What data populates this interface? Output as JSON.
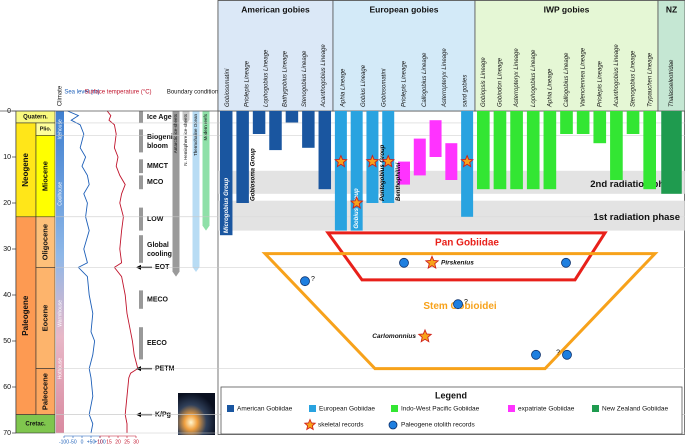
{
  "time_axis": {
    "lim": [
      0,
      70
    ],
    "ticks": [
      0,
      10,
      20,
      30,
      40,
      50,
      60,
      70
    ]
  },
  "periods": [
    {
      "label": "Quatern.",
      "start": 0,
      "end": 2.6,
      "color": "#f9f97f",
      "span": "both"
    },
    {
      "label": "Neogene",
      "start": 2.6,
      "end": 23,
      "color": "#ffe619"
    },
    {
      "label": "Paleogene",
      "start": 23,
      "end": 66,
      "color": "#fd9a52"
    },
    {
      "label": "Cretac.",
      "start": 66,
      "end": 70,
      "color": "#7fc64e",
      "span": "both"
    }
  ],
  "epochs": [
    {
      "label": "Plio.",
      "start": 2.6,
      "end": 5.3,
      "color": "#ffff99"
    },
    {
      "label": "Miocene",
      "start": 5.3,
      "end": 23,
      "color": "#ffff00"
    },
    {
      "label": "Oligocene",
      "start": 23,
      "end": 34,
      "color": "#fdc07a"
    },
    {
      "label": "Eocene",
      "start": 34,
      "end": 56,
      "color": "#fdb46c"
    },
    {
      "label": "Paleocene",
      "start": 56,
      "end": 66,
      "color": "#fda75f"
    }
  ],
  "column_headers": {
    "climate": "Climate",
    "sea_level": "Sea level (m)",
    "temperature": "Surface temperature (°C)",
    "boundary": "Boundary conditions"
  },
  "climate_states": [
    {
      "label": "Icehouse",
      "age": 4
    },
    {
      "label": "Coolhouse",
      "age": 18
    },
    {
      "label": "Warmhouse",
      "age": 44
    },
    {
      "label": "Hothouse",
      "age": 56
    }
  ],
  "sea_level": {
    "ages": [
      0,
      1,
      2,
      3,
      5,
      8,
      10,
      12,
      14,
      16,
      18,
      20,
      23,
      26,
      30,
      33,
      34,
      36,
      40,
      44,
      48,
      50,
      53,
      56,
      58,
      62,
      66,
      68,
      70
    ],
    "values": [
      -80,
      -20,
      -60,
      -10,
      10,
      -10,
      20,
      0,
      30,
      40,
      10,
      30,
      20,
      40,
      10,
      30,
      -20,
      30,
      40,
      60,
      50,
      70,
      60,
      40,
      50,
      60,
      40,
      60,
      50
    ],
    "xlim": [
      -100,
      100
    ],
    "ticks": [
      -100,
      -50,
      0,
      {
        "value": 50,
        "label": "+50"
      },
      {
        "value": 100,
        "label": "+100"
      }
    ]
  },
  "temperature": {
    "ages": [
      0,
      1,
      2,
      3,
      5,
      8,
      10,
      12,
      14,
      16,
      18,
      20,
      23,
      26,
      30,
      33,
      34,
      36,
      40,
      44,
      48,
      50,
      53,
      56,
      57,
      58,
      62,
      66,
      68,
      70
    ],
    "values": [
      14,
      16,
      15,
      18,
      19,
      18,
      20,
      19,
      21,
      24,
      22,
      21,
      23,
      22,
      21,
      22,
      18,
      22,
      24,
      25,
      27,
      28,
      29,
      31,
      27,
      26,
      25,
      24,
      25,
      25
    ],
    "xlim": [
      10,
      30
    ],
    "ticks": [
      10,
      15,
      20,
      25,
      30
    ]
  },
  "boundary_bars": [
    {
      "label": "Antarctic ice-sheets",
      "start": 0,
      "end": 36,
      "color": "#9a9a9a"
    },
    {
      "label": "N. Hemisphere ice-sheets",
      "start": 0,
      "end": 3,
      "color": "#c8c8c8"
    },
    {
      "label": "Thermohaline Ocean",
      "start": 0,
      "end": 35,
      "color": "#b8dcf4"
    },
    {
      "label": "Modern reefs",
      "start": 0,
      "end": 26,
      "color": "#8fe0a8"
    }
  ],
  "events": [
    {
      "label": "Ice Age",
      "start": 0,
      "end": 2.6
    },
    {
      "label": "Biogenic bloom",
      "start": 4,
      "end": 9
    },
    {
      "label": "MMCT",
      "start": 10.5,
      "end": 13.5
    },
    {
      "label": "MCO",
      "start": 14,
      "end": 17
    },
    {
      "label": "LOW",
      "start": 21,
      "end": 26
    },
    {
      "label": "Global cooling",
      "start": 27,
      "end": 33
    },
    {
      "label": "EOT",
      "start": 34,
      "arrow": true
    },
    {
      "label": "MECO",
      "start": 39,
      "end": 43
    },
    {
      "label": "EECO",
      "start": 47,
      "end": 54
    },
    {
      "label": "PETM",
      "start": 56,
      "arrow": true
    },
    {
      "label": "K/Pg",
      "start": 66,
      "arrow": true
    }
  ],
  "groups": [
    {
      "title": "American gobies",
      "color": "#dbe8f7",
      "lineages": [
        "Gobiosomatini",
        "Priolepis Lineage",
        "Lophogobius Lineage",
        "Bathygobius Lineage",
        "Stenogobius Lineage",
        "Acanthogobius Lineage"
      ],
      "bars": [
        {
          "start": 0,
          "end": 27,
          "color": "#1a56a0"
        },
        {
          "start": 0,
          "end": 20,
          "color": "#1a56a0"
        },
        {
          "start": 0,
          "end": 5,
          "color": "#1a56a0"
        },
        {
          "start": 0,
          "end": 8.5,
          "color": "#1a56a0"
        },
        {
          "start": 0,
          "end": 2.5,
          "color": "#1a56a0"
        },
        {
          "start": 0,
          "end": 8,
          "color": "#1a56a0"
        },
        {
          "start": 0,
          "end": 17,
          "color": "#1a56a0"
        }
      ]
    },
    {
      "title": "European gobies",
      "color": "#d3eaf8",
      "lineages": [
        "Aphia Lineage",
        "Gobius Lineage",
        "Gobiosomatini",
        "Priolepis Lineage",
        "Callogobius Lineage",
        "Asterropteryx Lineage",
        "sand gobies"
      ],
      "bars": [
        {
          "start": 0,
          "end": 26,
          "color": "#29a3e0"
        },
        {
          "start": 0,
          "end": 26,
          "color": "#29a3e0"
        },
        {
          "start": 0,
          "end": 20,
          "color": "#29a3e0"
        },
        {
          "start": 0,
          "end": 20,
          "color": "#29a3e0"
        },
        {
          "start": 11,
          "end": 16,
          "color": "#ff33ff"
        },
        {
          "start": 6,
          "end": 14,
          "color": "#ff33ff"
        },
        {
          "start": 2,
          "end": 10,
          "color": "#ff33ff"
        },
        {
          "start": 7,
          "end": 15,
          "color": "#ff33ff"
        },
        {
          "start": 0,
          "end": 23,
          "color": "#29a3e0"
        }
      ]
    },
    {
      "title": "IWP gobies",
      "color": "#e5f7d5",
      "lineages": [
        "Gobiopsis Lineage",
        "Gobiodon Lineage",
        "Asterropteryx Lineage",
        "Lophogobius Lineage",
        "Aphia Lineage",
        "Callogobius Lineage",
        "Valenciennea Lineage",
        "Priolepis Lineage",
        "Acanthogobius Lineage",
        "Stenogobius Lineage",
        "Trypauchen Lineage"
      ],
      "bars": [
        {
          "start": 0,
          "end": 17,
          "color": "#33e633"
        },
        {
          "start": 0,
          "end": 17,
          "color": "#33e633"
        },
        {
          "start": 0,
          "end": 17,
          "color": "#33e633"
        },
        {
          "start": 0,
          "end": 17,
          "color": "#33e633"
        },
        {
          "start": 0,
          "end": 17,
          "color": "#33e633"
        },
        {
          "start": 0,
          "end": 5,
          "color": "#33e633"
        },
        {
          "start": 0,
          "end": 5,
          "color": "#33e633"
        },
        {
          "start": 0,
          "end": 7,
          "color": "#33e633"
        },
        {
          "start": 0,
          "end": 15,
          "color": "#33e633"
        },
        {
          "start": 0,
          "end": 5,
          "color": "#33e633"
        },
        {
          "start": 0,
          "end": 17,
          "color": "#33e633"
        }
      ]
    },
    {
      "title": "NZ",
      "color": "#c5e7d3",
      "lineages": [
        "Thalasseleotridae"
      ],
      "bars": [
        {
          "start": 0,
          "end": 18,
          "color": "#1f9b4f"
        }
      ]
    }
  ],
  "bar_labels": [
    {
      "text": "Microgobius Group",
      "group": 0,
      "bar": 0,
      "inside": true
    },
    {
      "text": "Gobiosoma Group",
      "group": 0,
      "bar": 1
    },
    {
      "text": "Gobius Group",
      "group": 1,
      "bar": 1,
      "inside": true
    },
    {
      "text": "Pontogobius Group",
      "group": 1,
      "bar": 2
    },
    {
      "text": "Benthophilini",
      "group": 1,
      "bar": 3
    }
  ],
  "phases": [
    {
      "label": "2nd radiation phase",
      "start": 13,
      "end": 18
    },
    {
      "label": "1st radiation phase",
      "start": 19.5,
      "end": 26
    }
  ],
  "clades": [
    {
      "label": "Pan Gobiidae",
      "top": 26.5,
      "bottom": 36.7,
      "color": "#e8201a"
    },
    {
      "label": "Stem Gobioidei",
      "top": 31,
      "bottom": 56,
      "color": "#f7a21b"
    }
  ],
  "bar_stars": [
    {
      "group": 1,
      "bar": 0,
      "age": 11
    },
    {
      "group": 1,
      "bar": 2,
      "age": 11
    },
    {
      "group": 1,
      "bar": 3,
      "age": 11
    },
    {
      "group": 1,
      "bar": 8,
      "age": 11
    },
    {
      "group": 1,
      "bar": 1,
      "age": 20
    }
  ],
  "skeletal_fossils": [
    {
      "name": "Pirskenius",
      "age": 33
    },
    {
      "name": "Carlomonnius",
      "age": 49
    }
  ],
  "otoliths": [
    {
      "age": 33
    },
    {
      "age": 33
    },
    {
      "age": 37,
      "query": "?"
    },
    {
      "age": 42,
      "query": "?"
    },
    {
      "age": 53
    },
    {
      "age": 53,
      "query": "?"
    }
  ],
  "legend": {
    "title": "Legend",
    "swatches": [
      {
        "label": "American Gobiidae",
        "color": "#1a56a0"
      },
      {
        "label": "European Gobiidae",
        "color": "#29a3e0"
      },
      {
        "label": "Indo-West Pacific Gobiidae",
        "color": "#33e633"
      },
      {
        "label": "expatriate Gobiidae",
        "color": "#ff33ff"
      },
      {
        "label": "New Zealand Gobiidae",
        "color": "#1f9b4f"
      }
    ],
    "star": "skeletal records",
    "circle": "Paleogene otolith records"
  }
}
